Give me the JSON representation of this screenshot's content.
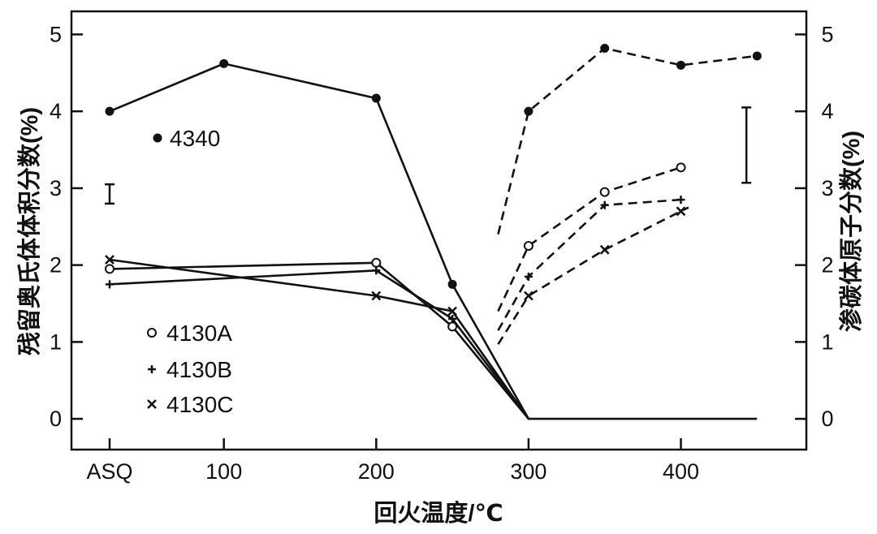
{
  "chart_data": {
    "type": "line",
    "x_tick_labels": [
      "ASQ",
      "100",
      "200",
      "300",
      "400"
    ],
    "x_tick_values": [
      25,
      100,
      200,
      300,
      400
    ],
    "xlim": [
      0,
      460
    ],
    "xlabel": "回火温度/℃",
    "ylabel_left": "残留奥氏体体积分数(%)",
    "ylabel_right": "渗碳体原子分数(%)",
    "ylim_left": [
      -0.4,
      5.3
    ],
    "ylim_right": [
      -0.4,
      5.3
    ],
    "y_ticks_left": [
      "0",
      "1",
      "2",
      "3",
      "4",
      "5"
    ],
    "y_ticks_right": [
      "0",
      "1",
      "2",
      "3",
      "4",
      "5"
    ],
    "grid": false,
    "series": [
      {
        "name": "4340",
        "marker": "filled-circle",
        "solid": {
          "x": [
            25,
            100,
            200,
            250,
            300,
            450
          ],
          "y": [
            4.0,
            4.62,
            4.17,
            1.75,
            0.0,
            0.0
          ]
        },
        "dashed": {
          "x": [
            280,
            300,
            350,
            400,
            450
          ],
          "y": [
            2.4,
            4.0,
            4.82,
            4.6,
            4.72
          ]
        }
      },
      {
        "name": "4130A",
        "marker": "open-circle",
        "solid": {
          "x": [
            25,
            200,
            250,
            300
          ],
          "y": [
            1.95,
            2.03,
            1.2,
            0.0
          ]
        },
        "dashed": {
          "x": [
            280,
            300,
            350,
            400
          ],
          "y": [
            1.4,
            2.25,
            2.95,
            3.27
          ]
        }
      },
      {
        "name": "4130B",
        "marker": "plus",
        "solid": {
          "x": [
            25,
            200,
            250,
            300
          ],
          "y": [
            1.75,
            1.93,
            1.3,
            0.0
          ]
        },
        "dashed": {
          "x": [
            280,
            300,
            350,
            400
          ],
          "y": [
            1.15,
            1.85,
            2.78,
            2.85
          ]
        }
      },
      {
        "name": "4130C",
        "marker": "cross",
        "solid": {
          "x": [
            25,
            200,
            250,
            300
          ],
          "y": [
            2.07,
            1.6,
            1.4,
            0.0
          ]
        },
        "dashed": {
          "x": [
            280,
            300,
            350,
            400,
            405
          ],
          "y": [
            0.97,
            1.6,
            2.2,
            2.7,
            2.75
          ]
        }
      }
    ],
    "error_bars": [
      {
        "x": 25,
        "low": 2.8,
        "high": 3.05,
        "axis": "left"
      },
      {
        "x": 443,
        "low": 3.07,
        "high": 4.05,
        "axis": "right"
      }
    ],
    "legend": {
      "label_4340": "4340",
      "label_4130A": "4130A",
      "label_4130B": "4130B",
      "label_4130C": "4130C"
    }
  }
}
